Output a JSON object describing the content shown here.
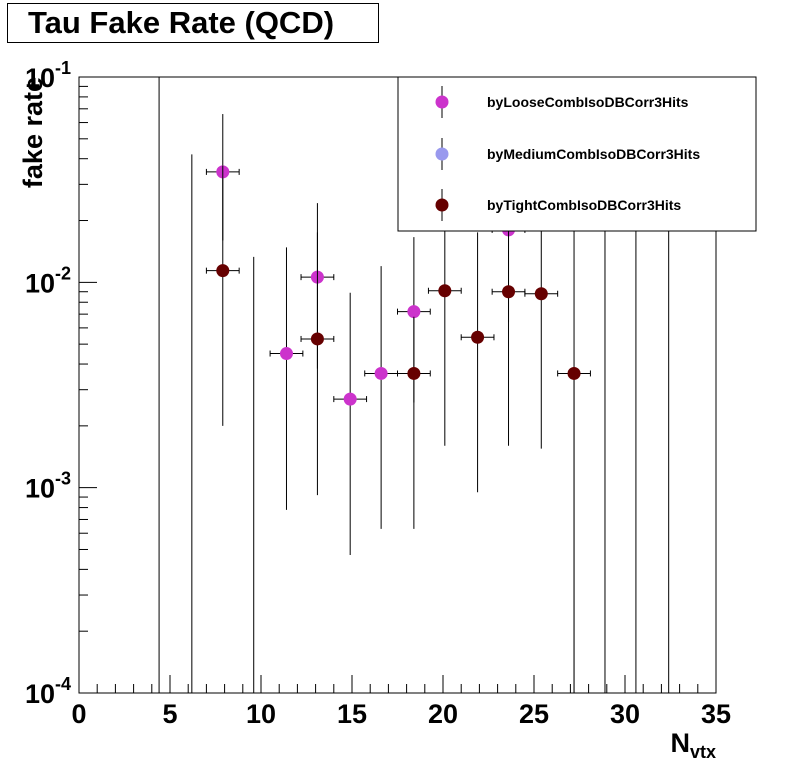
{
  "chart_data": {
    "type": "scatter",
    "title": "Tau Fake Rate (QCD)",
    "xlabel": "N",
    "xlabel_sub": "vtx",
    "ylabel": "fake rate",
    "xlim": [
      0,
      35
    ],
    "ylim": [
      0.0001,
      0.1
    ],
    "y_scale": "log",
    "x_ticks": [
      "0",
      "5",
      "10",
      "15",
      "20",
      "25",
      "30",
      "35"
    ],
    "y_ticks": [
      {
        "value": 0.0001,
        "base": "10",
        "exp": "-4"
      },
      {
        "value": 0.001,
        "base": "10",
        "exp": "-3"
      },
      {
        "value": 0.01,
        "base": "10",
        "exp": "-2"
      },
      {
        "value": 0.1,
        "base": "10",
        "exp": "-1"
      }
    ],
    "grid": false,
    "legend_position": "top-right",
    "empty_bins": [
      {
        "x": 4.4,
        "yhi": 0.1
      },
      {
        "x": 6.2,
        "yhi": 0.042
      },
      {
        "x": 9.6,
        "yhi": 0.0133
      },
      {
        "x": 27.2,
        "yhi": 0.1
      },
      {
        "x": 28.9,
        "yhi": 0.1
      },
      {
        "x": 30.6,
        "yhi": 0.1
      },
      {
        "x": 32.4,
        "yhi": 0.1
      }
    ],
    "series": [
      {
        "name": "byLooseCombIsoDBCorr3Hits",
        "color": "#cc33cc",
        "points": [
          {
            "x": 7.9,
            "xerr": 0.9,
            "y": 0.0345,
            "ylo": 0.016,
            "yhi": 0.066
          },
          {
            "x": 11.4,
            "xerr": 0.9,
            "y": 0.0045,
            "ylo": 0.00078,
            "yhi": 0.0148
          },
          {
            "x": 13.1,
            "xerr": 0.9,
            "y": 0.0106,
            "ylo": 0.0038,
            "yhi": 0.0243
          },
          {
            "x": 14.9,
            "xerr": 0.9,
            "y": 0.0027,
            "ylo": 0.00047,
            "yhi": 0.0089
          },
          {
            "x": 16.6,
            "xerr": 0.9,
            "y": 0.0036,
            "ylo": 0.00063,
            "yhi": 0.012
          },
          {
            "x": 18.4,
            "xerr": 0.9,
            "y": 0.0072,
            "ylo": 0.0026,
            "yhi": 0.0166
          },
          {
            "x": 23.6,
            "xerr": 0.9,
            "y": 0.018,
            "ylo": 0.0064,
            "yhi": 0.02
          }
        ]
      },
      {
        "name": "byMediumCombIsoDBCorr3Hits",
        "color": "#9999ee",
        "points": []
      },
      {
        "name": "byTightCombIsoDBCorr3Hits",
        "color": "#660000",
        "points": [
          {
            "x": 7.9,
            "xerr": 0.9,
            "y": 0.0114,
            "ylo": 0.002,
            "yhi": 0.037
          },
          {
            "x": 13.1,
            "xerr": 0.9,
            "y": 0.0053,
            "ylo": 0.00092,
            "yhi": 0.0175
          },
          {
            "x": 18.4,
            "xerr": 0.9,
            "y": 0.0036,
            "ylo": 0.00063,
            "yhi": 0.0068
          },
          {
            "x": 20.1,
            "xerr": 0.9,
            "y": 0.0091,
            "ylo": 0.0016,
            "yhi": 0.03
          },
          {
            "x": 21.9,
            "xerr": 0.9,
            "y": 0.0054,
            "ylo": 0.00095,
            "yhi": 0.0175
          },
          {
            "x": 23.6,
            "xerr": 0.9,
            "y": 0.009,
            "ylo": 0.0016,
            "yhi": 0.03
          },
          {
            "x": 25.4,
            "xerr": 0.9,
            "y": 0.0088,
            "ylo": 0.00155,
            "yhi": 0.029
          },
          {
            "x": 27.2,
            "xerr": 0.9,
            "y": 0.0036,
            "ylo": 0.0001,
            "yhi": 0.0036
          }
        ]
      }
    ]
  }
}
